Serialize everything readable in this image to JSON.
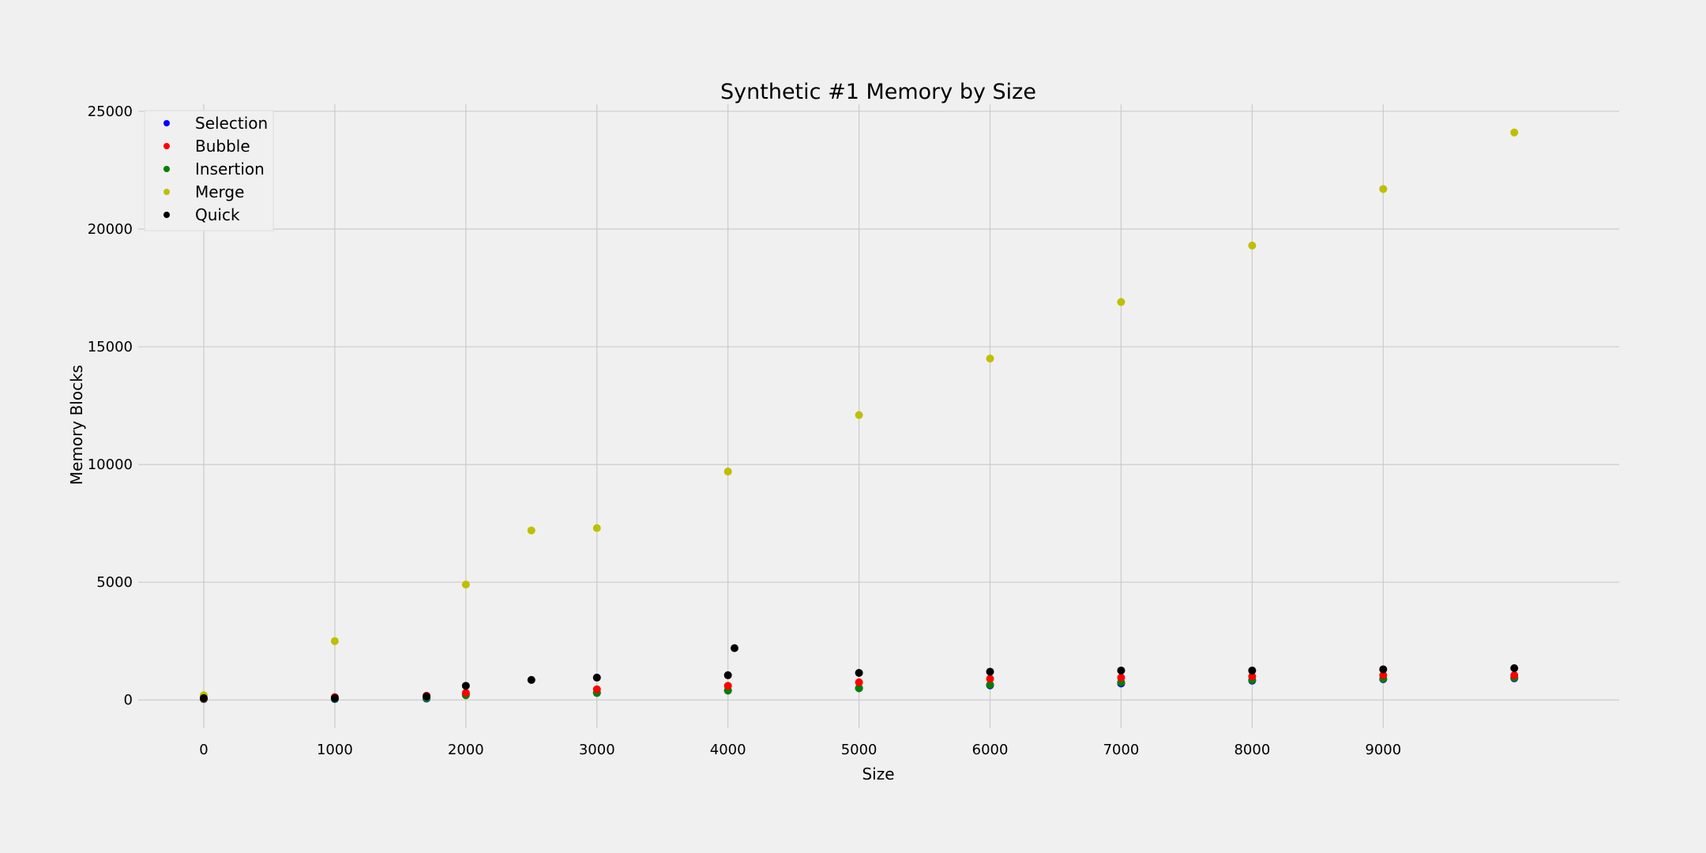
{
  "chart_data": {
    "type": "scatter",
    "title": "Synthetic #1 Memory by Size",
    "xlabel": "Size",
    "ylabel": "Memory Blocks",
    "xlim": [
      -500,
      10800
    ],
    "ylim": [
      -1200,
      25300
    ],
    "x_ticks": [
      0,
      1000,
      2000,
      3000,
      4000,
      5000,
      6000,
      7000,
      8000,
      9000
    ],
    "y_ticks": [
      0,
      5000,
      10000,
      15000,
      20000,
      25000
    ],
    "grid": true,
    "legend_placement": "top-left",
    "series": [
      {
        "name": "Selection",
        "color": "#0000ff",
        "x": [
          0,
          1000,
          1700,
          2000,
          3000,
          4000,
          5000,
          6000,
          7000,
          8000,
          9000,
          10000
        ],
        "y": [
          40,
          40,
          60,
          250,
          300,
          400,
          500,
          620,
          700,
          820,
          880,
          920
        ]
      },
      {
        "name": "Bubble",
        "color": "#ff0000",
        "x": [
          0,
          1000,
          1700,
          2000,
          3000,
          4000,
          5000,
          6000,
          7000,
          8000,
          9000,
          10000
        ],
        "y": [
          60,
          120,
          180,
          300,
          450,
          600,
          750,
          900,
          950,
          1000,
          1050,
          1050
        ]
      },
      {
        "name": "Insertion",
        "color": "#008000",
        "x": [
          0,
          1000,
          1700,
          2000,
          3000,
          4000,
          5000,
          6000,
          7000,
          8000,
          9000,
          10000
        ],
        "y": [
          40,
          50,
          80,
          200,
          300,
          400,
          500,
          650,
          750,
          850,
          900,
          950
        ]
      },
      {
        "name": "Merge",
        "color": "#bfbf00",
        "x": [
          0,
          1000,
          2000,
          2500,
          3000,
          4000,
          5000,
          6000,
          7000,
          8000,
          9000,
          10000
        ],
        "y": [
          200,
          2500,
          4900,
          7200,
          7300,
          9700,
          12100,
          14500,
          16900,
          19300,
          21700,
          24100
        ]
      },
      {
        "name": "Quick",
        "color": "#000000",
        "x": [
          0,
          1000,
          1700,
          2000,
          2500,
          3000,
          4000,
          4050,
          5000,
          6000,
          7000,
          8000,
          9000,
          10000
        ],
        "y": [
          80,
          80,
          150,
          600,
          850,
          950,
          1050,
          2200,
          1150,
          1200,
          1250,
          1250,
          1300,
          1350
        ]
      }
    ]
  }
}
